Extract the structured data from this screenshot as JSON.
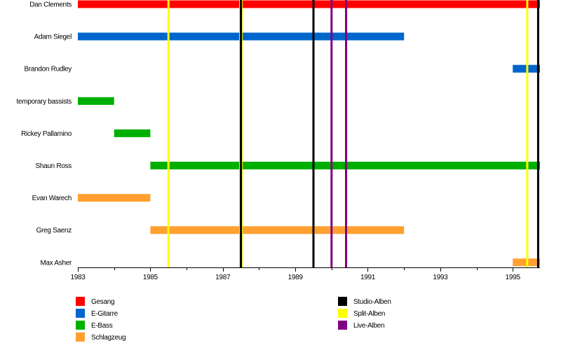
{
  "chart_data": {
    "type": "timeline",
    "xlim": [
      1983,
      1995.75
    ],
    "ticks": [
      1983,
      1985,
      1987,
      1989,
      1991,
      1993,
      1995
    ],
    "tick_labels": [
      "1983",
      "1985",
      "1987",
      "1989",
      "1991",
      "1993",
      "1995"
    ],
    "members": [
      {
        "name": "Dan Clements",
        "bars": [
          {
            "role": "Gesang",
            "start": 1983,
            "end": 1995.75
          }
        ]
      },
      {
        "name": "Adam Siegel",
        "bars": [
          {
            "role": "E-Gitarre",
            "start": 1983,
            "end": 1992
          }
        ]
      },
      {
        "name": "Brandon Rudley",
        "bars": [
          {
            "role": "E-Gitarre",
            "start": 1995,
            "end": 1995.75
          }
        ]
      },
      {
        "name": "temporary bassists",
        "bars": [
          {
            "role": "E-Bass",
            "start": 1983,
            "end": 1984
          }
        ]
      },
      {
        "name": "Rickey Pallamino",
        "bars": [
          {
            "role": "E-Bass",
            "start": 1984,
            "end": 1985
          }
        ]
      },
      {
        "name": "Shaun Ross",
        "bars": [
          {
            "role": "E-Bass",
            "start": 1985,
            "end": 1995.75
          }
        ]
      },
      {
        "name": "Evan Warech",
        "bars": [
          {
            "role": "Schlagzeug",
            "start": 1983,
            "end": 1985
          }
        ]
      },
      {
        "name": "Greg Saenz",
        "bars": [
          {
            "role": "Schlagzeug",
            "start": 1985,
            "end": 1992
          }
        ]
      },
      {
        "name": "Max Asher",
        "bars": [
          {
            "role": "Schlagzeug",
            "start": 1995,
            "end": 1995.75
          }
        ]
      }
    ],
    "events": [
      {
        "type": "Split-Alben",
        "x": 1985.5
      },
      {
        "type": "Split-Alben",
        "x": 1987.5
      },
      {
        "type": "Studio-Alben",
        "x": 1987.5
      },
      {
        "type": "Studio-Alben",
        "x": 1989.5
      },
      {
        "type": "Live-Alben",
        "x": 1990
      },
      {
        "type": "Live-Alben",
        "x": 1990.4
      },
      {
        "type": "Split-Alben",
        "x": 1995.4
      },
      {
        "type": "Studio-Alben",
        "x": 1995.7
      }
    ],
    "legend_roles": [
      {
        "label": "Gesang",
        "color": "#ff0000"
      },
      {
        "label": "E-Gitarre",
        "color": "#0066cc"
      },
      {
        "label": "E-Bass",
        "color": "#00b000"
      },
      {
        "label": "Schlagzeug",
        "color": "#ffa030"
      }
    ],
    "legend_events": [
      {
        "label": "Studio-Alben",
        "color": "#000000"
      },
      {
        "label": "Split-Alben",
        "color": "#ffff00"
      },
      {
        "label": "Live-Alben",
        "color": "#800080"
      }
    ]
  }
}
